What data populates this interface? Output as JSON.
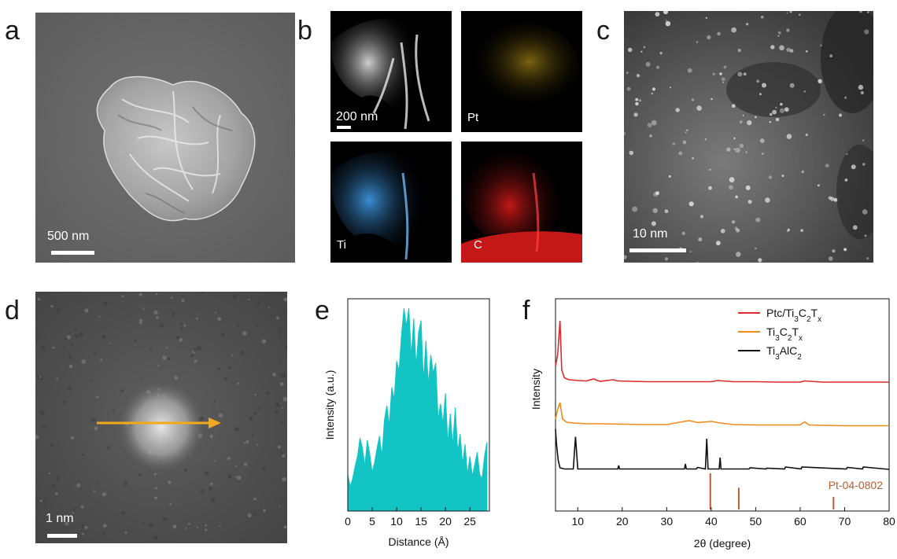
{
  "panels": {
    "a": {
      "letter": "a",
      "scale_label": "500 nm"
    },
    "b": {
      "letter": "b",
      "tiles": [
        {
          "label": "",
          "scale_label": "200 nm",
          "color": "#ffffff"
        },
        {
          "label": "Pt",
          "color": "#c9a21e"
        },
        {
          "label": "Ti",
          "color": "#3b8fd6"
        },
        {
          "label": "C",
          "color": "#d42020"
        }
      ]
    },
    "c": {
      "letter": "c",
      "scale_label": "10 nm"
    },
    "d": {
      "letter": "d",
      "scale_label": "1 nm",
      "arrow_color": "#f2a91b"
    },
    "e": {
      "letter": "e"
    },
    "f": {
      "letter": "f"
    }
  },
  "chart_data": [
    {
      "type": "area",
      "panel": "e",
      "xlabel": "Distance (Å)",
      "ylabel": "Intensity (a.u.)",
      "xlim": [
        0,
        29
      ],
      "xticks": [
        "0",
        "5",
        "10",
        "15",
        "20",
        "25"
      ],
      "fill_color": "#13c4c4",
      "series": [
        {
          "x": [
            0,
            0.5,
            1,
            1.5,
            2,
            2.5,
            3,
            3.5,
            4,
            4.5,
            5,
            5.5,
            6,
            6.5,
            7,
            7.5,
            8,
            8.5,
            9,
            9.5,
            10,
            10.5,
            11,
            11.5,
            12,
            12.5,
            13,
            13.5,
            14,
            14.5,
            15,
            15.5,
            16,
            16.5,
            17,
            17.5,
            18,
            18.5,
            19,
            19.5,
            20,
            20.5,
            21,
            21.5,
            22,
            22.5,
            23,
            23.5,
            24,
            24.5,
            25,
            25.5,
            26,
            26.5,
            27,
            27.5,
            28,
            28.5
          ],
          "values": [
            0.18,
            0.12,
            0.16,
            0.22,
            0.27,
            0.36,
            0.31,
            0.22,
            0.35,
            0.28,
            0.19,
            0.24,
            0.31,
            0.37,
            0.27,
            0.45,
            0.52,
            0.42,
            0.61,
            0.55,
            0.74,
            0.69,
            0.87,
            1.0,
            0.91,
            1.0,
            0.76,
            0.95,
            0.71,
            0.88,
            0.94,
            0.64,
            0.84,
            0.62,
            0.77,
            0.68,
            0.73,
            0.45,
            0.53,
            0.43,
            0.58,
            0.33,
            0.48,
            0.32,
            0.51,
            0.29,
            0.38,
            0.23,
            0.33,
            0.18,
            0.27,
            0.17,
            0.23,
            0.29,
            0.18,
            0.16,
            0.27,
            0.34
          ]
        }
      ]
    },
    {
      "type": "line",
      "panel": "f",
      "xlabel": "2θ (degree)",
      "ylabel": "Intensity",
      "xlim": [
        5,
        80
      ],
      "xticks": [
        "10",
        "20",
        "30",
        "40",
        "50",
        "60",
        "70",
        "80"
      ],
      "legend_placement": "top-right",
      "series": [
        {
          "name": "Ptc/Ti3C2Tx",
          "color": "#dd2a2a",
          "offset": 2.2,
          "x": [
            5,
            5.5,
            6,
            6.4,
            7,
            8,
            10,
            12,
            13.5,
            15,
            18,
            19,
            22,
            26,
            30,
            35,
            40,
            41.5,
            45,
            50,
            55,
            60,
            61,
            65,
            70,
            75,
            80
          ],
          "values": [
            0.45,
            0.75,
            1.6,
            0.35,
            0.15,
            0.1,
            0.08,
            0.07,
            0.12,
            0.06,
            0.1,
            0.07,
            0.06,
            0.05,
            0.05,
            0.05,
            0.05,
            0.08,
            0.05,
            0.05,
            0.04,
            0.04,
            0.07,
            0.04,
            0.04,
            0.04,
            0.04
          ]
        },
        {
          "name": "Ti3C2Tx",
          "color": "#f08a1a",
          "offset": 1.1,
          "x": [
            5,
            5.5,
            6,
            6.6,
            7.5,
            9,
            12,
            15,
            20,
            25,
            30,
            33,
            35,
            37,
            40,
            42,
            45,
            50,
            55,
            60,
            61,
            62,
            65,
            70,
            75,
            80
          ],
          "values": [
            0.2,
            0.45,
            0.62,
            0.2,
            0.12,
            0.1,
            0.08,
            0.08,
            0.07,
            0.06,
            0.06,
            0.12,
            0.16,
            0.11,
            0.14,
            0.1,
            0.06,
            0.05,
            0.05,
            0.05,
            0.13,
            0.05,
            0.04,
            0.03,
            0.03,
            0.03
          ]
        },
        {
          "name": "Ti3AlC2",
          "color": "#111111",
          "offset": 0.0,
          "x": [
            5,
            5.2,
            5.6,
            6,
            7,
            9,
            9.5,
            10,
            19,
            19.2,
            19.4,
            34,
            34.2,
            34.4,
            36.7,
            36.9,
            38.7,
            39,
            39.3,
            41.8,
            42,
            42.2,
            48.5,
            48.7,
            52.3,
            52.5,
            56.5,
            56.7,
            60.2,
            60.4,
            70.4,
            70.6,
            74,
            74.2,
            80
          ],
          "values": [
            1.05,
            0.7,
            0.25,
            0.06,
            0.03,
            0.03,
            0.85,
            0.03,
            0.03,
            0.12,
            0.03,
            0.03,
            0.16,
            0.03,
            0.03,
            0.07,
            0.03,
            0.8,
            0.03,
            0.03,
            0.32,
            0.03,
            0.03,
            0.06,
            0.03,
            0.05,
            0.03,
            0.08,
            0.03,
            0.08,
            0.03,
            0.07,
            0.03,
            0.08,
            0.02
          ]
        }
      ],
      "reference": {
        "label": "Pt-04-0802",
        "color": "#b85c33",
        "peaks": [
          {
            "x": 39.8,
            "value": 1.0
          },
          {
            "x": 46.2,
            "value": 0.6
          },
          {
            "x": 67.5,
            "value": 0.35
          }
        ]
      }
    }
  ]
}
